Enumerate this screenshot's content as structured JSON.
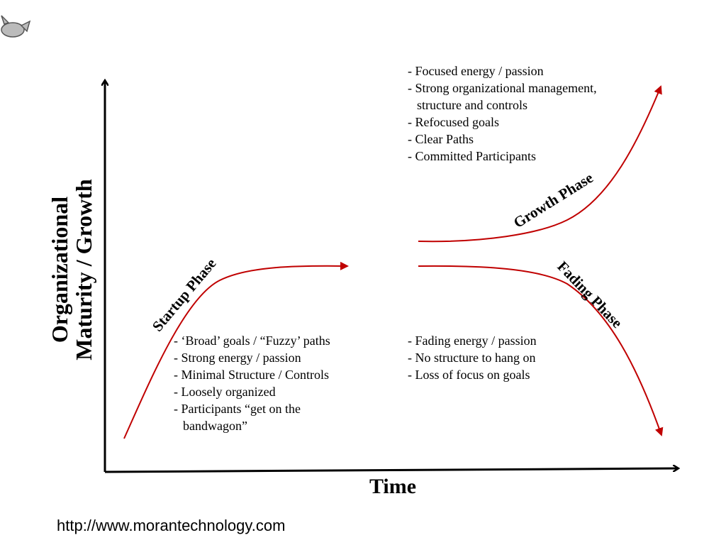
{
  "y_axis_label": [
    "Organizational",
    "Maturity / Growth"
  ],
  "x_axis_label": "Time",
  "phases": [
    {
      "label": "Startup Phase",
      "items": [
        [
          "- ‘Broad’ goals / “Fuzzy’ paths"
        ],
        [
          "- Strong energy / passion"
        ],
        [
          "- Minimal Structure / Controls"
        ],
        [
          "- Loosely organized"
        ],
        [
          "- Participants “get on the",
          "bandwagon”"
        ]
      ]
    },
    {
      "label": "Growth Phase",
      "items": [
        [
          "- Focused energy / passion"
        ],
        [
          "- Strong organizational management,",
          "structure and controls"
        ],
        [
          "- Refocused goals"
        ],
        [
          "- Clear Paths"
        ],
        [
          "- Committed Participants"
        ]
      ]
    },
    {
      "label": "Fading Phase",
      "items": [
        [
          "- Fading energy / passion"
        ],
        [
          "- No structure to hang on"
        ],
        [
          "- Loss of focus on goals"
        ]
      ]
    }
  ],
  "footer": "http://www.morantechnology.com"
}
